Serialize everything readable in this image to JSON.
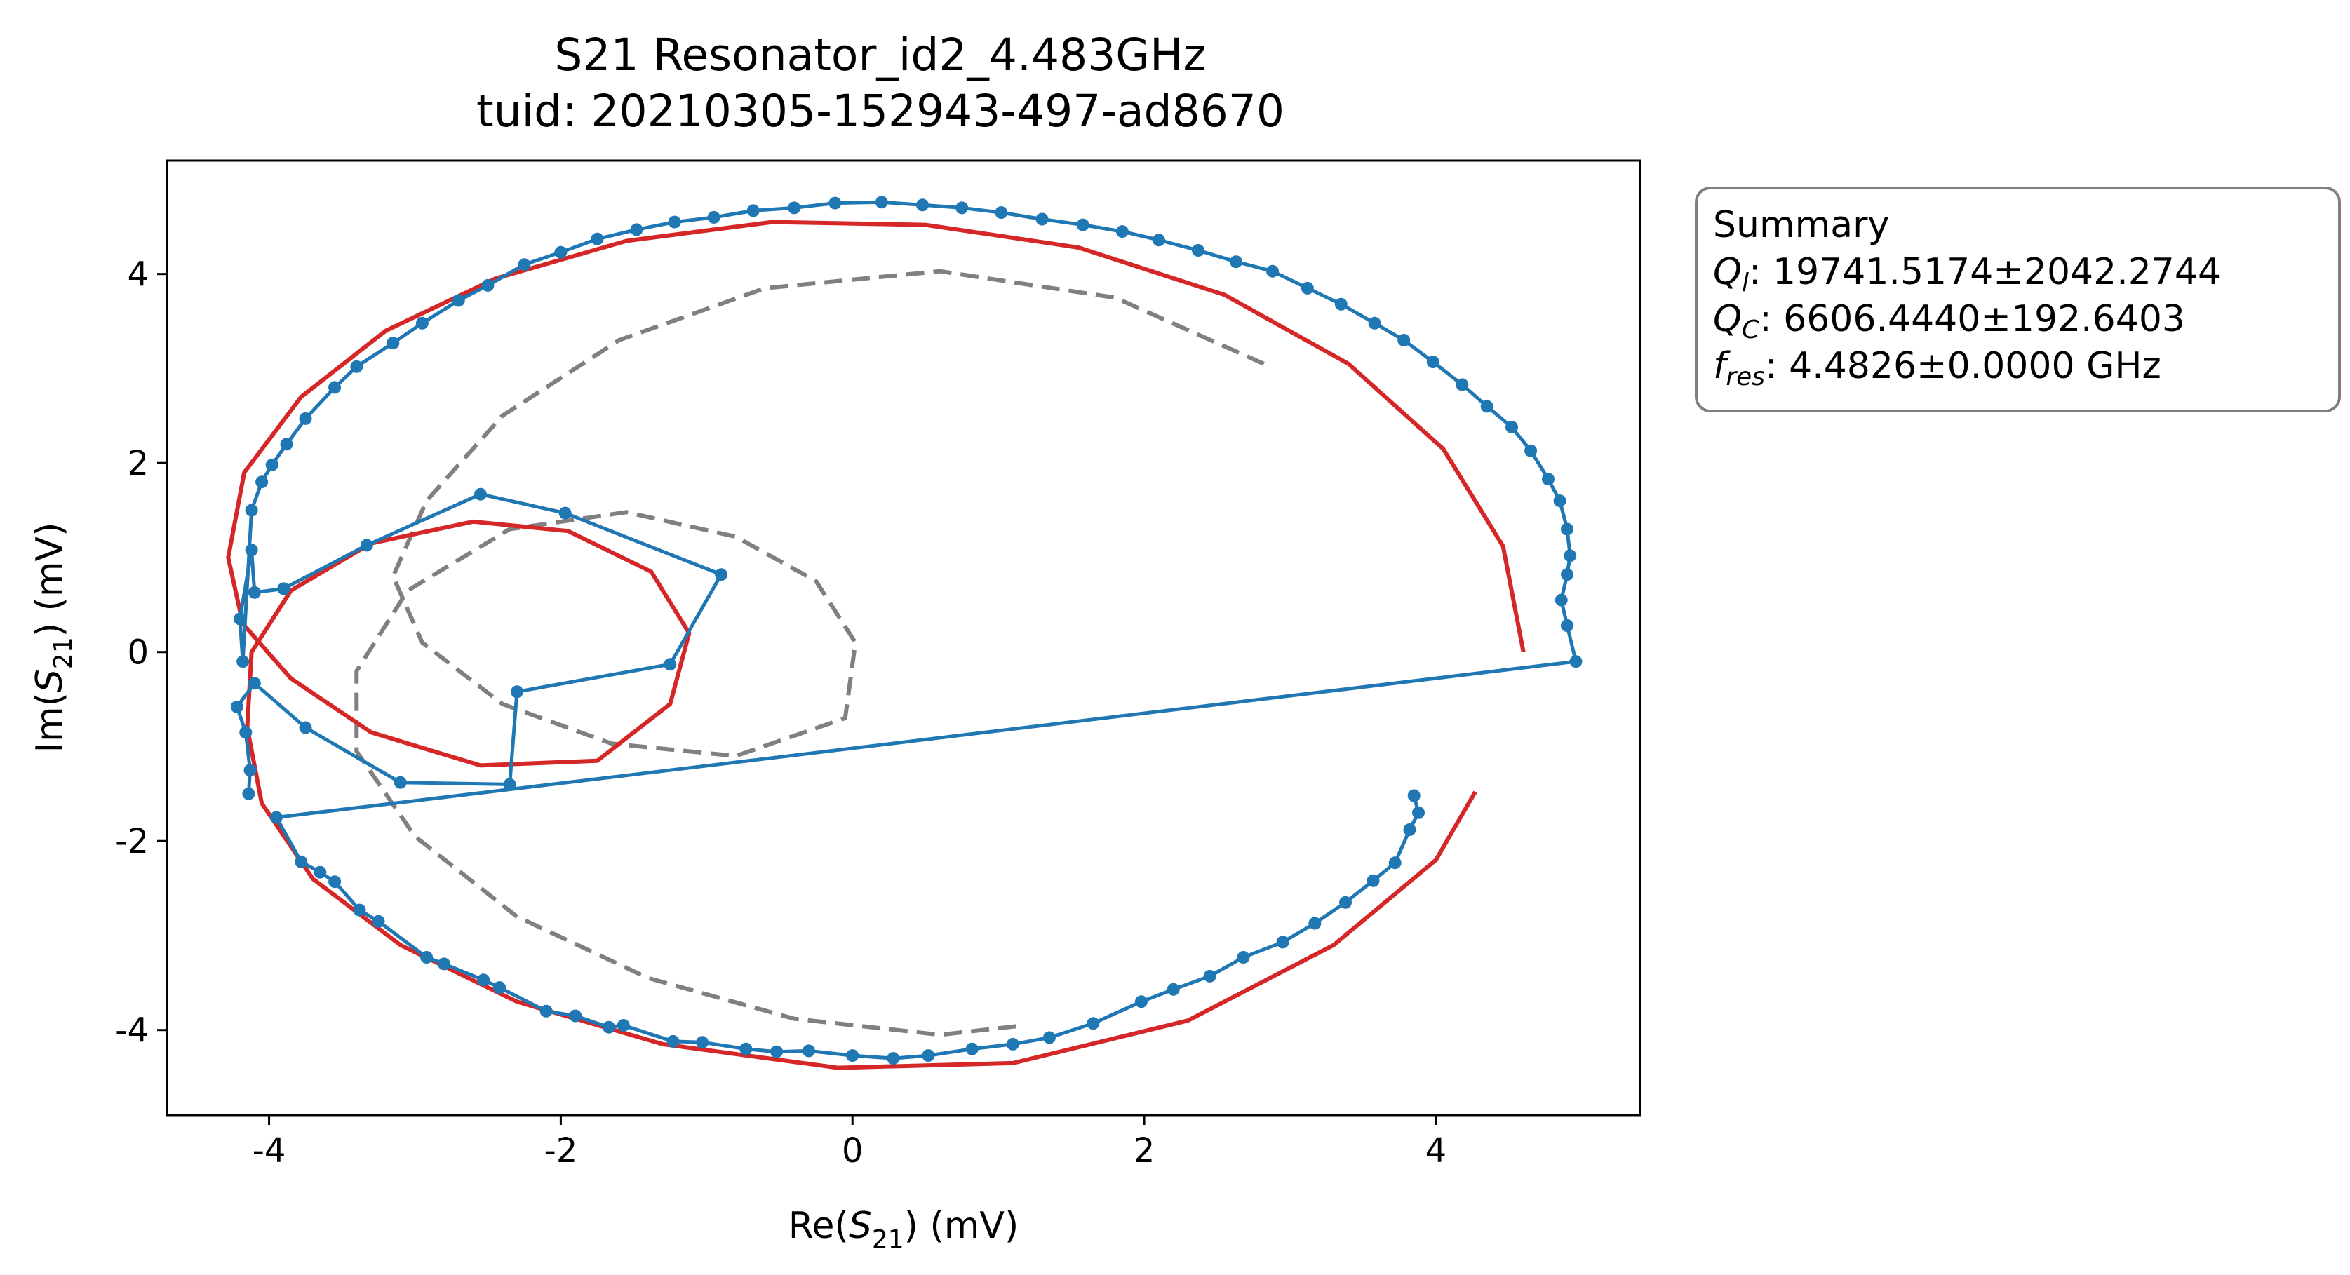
{
  "chart_data": {
    "type": "line",
    "title": "S21 Resonator_id2_4.483GHz",
    "subtitle": "tuid: 20210305-152943-497-ad8670",
    "xlabel": {
      "prefix": "Re(",
      "var": "S",
      "sub": "21",
      "suffix": ") (mV)"
    },
    "ylabel": {
      "prefix": "Im(",
      "var": "S",
      "sub": "21",
      "suffix": ") (mV)"
    },
    "xlim": [
      -4.7,
      5.4
    ],
    "ylim": [
      -4.9,
      5.2
    ],
    "xticks": [
      -4,
      -2,
      0,
      2,
      4
    ],
    "yticks": [
      -4,
      -2,
      0,
      2,
      4
    ],
    "xtick_labels": [
      "-4",
      "-2",
      "0",
      "2",
      "4"
    ],
    "ytick_labels": [
      "-4",
      "-2",
      "0",
      "2",
      "4"
    ],
    "grid": false,
    "colors": {
      "data": "#1f77b4",
      "fit": "#d62728",
      "guess": "#808080"
    },
    "series": [
      {
        "role": "data",
        "style": "line-markers",
        "points": [
          [
            -4.14,
            -1.5
          ],
          [
            -4.13,
            -1.25
          ],
          [
            -4.16,
            -0.85
          ],
          [
            -4.22,
            -0.58
          ],
          [
            -4.1,
            -0.33
          ],
          [
            -3.75,
            -0.8
          ],
          [
            -3.1,
            -1.38
          ],
          [
            -2.35,
            -1.4
          ],
          [
            -2.3,
            -0.42
          ],
          [
            -1.25,
            -0.13
          ],
          [
            -0.9,
            0.82
          ],
          [
            -1.97,
            1.47
          ],
          [
            -2.55,
            1.67
          ],
          [
            -3.33,
            1.13
          ],
          [
            -3.9,
            0.67
          ],
          [
            -4.1,
            0.63
          ],
          [
            -4.12,
            1.08
          ],
          [
            -4.2,
            0.35
          ],
          [
            -4.18,
            -0.1
          ],
          [
            -4.12,
            1.5
          ],
          [
            -4.05,
            1.8
          ],
          [
            -3.98,
            1.98
          ],
          [
            -3.88,
            2.2
          ],
          [
            -3.75,
            2.47
          ],
          [
            -3.55,
            2.8
          ],
          [
            -3.4,
            3.02
          ],
          [
            -3.15,
            3.27
          ],
          [
            -2.95,
            3.48
          ],
          [
            -2.7,
            3.72
          ],
          [
            -2.5,
            3.88
          ],
          [
            -2.25,
            4.1
          ],
          [
            -2.0,
            4.23
          ],
          [
            -1.75,
            4.37
          ],
          [
            -1.48,
            4.47
          ],
          [
            -1.22,
            4.55
          ],
          [
            -0.95,
            4.6
          ],
          [
            -0.68,
            4.67
          ],
          [
            -0.4,
            4.7
          ],
          [
            -0.12,
            4.75
          ],
          [
            0.2,
            4.76
          ],
          [
            0.48,
            4.73
          ],
          [
            0.75,
            4.7
          ],
          [
            1.02,
            4.65
          ],
          [
            1.3,
            4.58
          ],
          [
            1.58,
            4.52
          ],
          [
            1.85,
            4.45
          ],
          [
            2.1,
            4.36
          ],
          [
            2.37,
            4.25
          ],
          [
            2.63,
            4.13
          ],
          [
            2.88,
            4.03
          ],
          [
            3.12,
            3.85
          ],
          [
            3.35,
            3.68
          ],
          [
            3.58,
            3.48
          ],
          [
            3.78,
            3.3
          ],
          [
            3.98,
            3.07
          ],
          [
            4.18,
            2.83
          ],
          [
            4.35,
            2.6
          ],
          [
            4.52,
            2.38
          ],
          [
            4.65,
            2.13
          ],
          [
            4.77,
            1.83
          ],
          [
            4.85,
            1.6
          ],
          [
            4.9,
            1.3
          ],
          [
            4.92,
            1.02
          ],
          [
            4.9,
            0.82
          ],
          [
            4.86,
            0.55
          ],
          [
            4.9,
            0.28
          ],
          [
            4.96,
            -0.1
          ],
          [
            -3.95,
            -1.75
          ],
          [
            -3.78,
            -2.22
          ],
          [
            -3.65,
            -2.33
          ],
          [
            -3.55,
            -2.43
          ],
          [
            -3.38,
            -2.73
          ],
          [
            -3.25,
            -2.85
          ],
          [
            -2.92,
            -3.23
          ],
          [
            -2.8,
            -3.3
          ],
          [
            -2.53,
            -3.47
          ],
          [
            -2.42,
            -3.55
          ],
          [
            -2.1,
            -3.8
          ],
          [
            -1.9,
            -3.85
          ],
          [
            -1.67,
            -3.97
          ],
          [
            -1.57,
            -3.95
          ],
          [
            -1.23,
            -4.12
          ],
          [
            -1.03,
            -4.13
          ],
          [
            -0.73,
            -4.2
          ],
          [
            -0.52,
            -4.23
          ],
          [
            -0.3,
            -4.22
          ],
          [
            0.0,
            -4.27
          ],
          [
            0.28,
            -4.3
          ],
          [
            0.52,
            -4.27
          ],
          [
            0.82,
            -4.2
          ],
          [
            1.1,
            -4.15
          ],
          [
            1.35,
            -4.08
          ],
          [
            1.65,
            -3.93
          ],
          [
            1.98,
            -3.7
          ],
          [
            2.2,
            -3.57
          ],
          [
            2.45,
            -3.43
          ],
          [
            2.68,
            -3.23
          ],
          [
            2.95,
            -3.07
          ],
          [
            3.17,
            -2.87
          ],
          [
            3.38,
            -2.65
          ],
          [
            3.57,
            -2.42
          ],
          [
            3.72,
            -2.23
          ],
          [
            3.82,
            -1.88
          ],
          [
            3.88,
            -1.7
          ],
          [
            3.85,
            -1.52
          ]
        ]
      },
      {
        "role": "fit",
        "style": "solid-curve",
        "points": [
          [
            4.6,
            0.0
          ],
          [
            4.46,
            1.12
          ],
          [
            4.05,
            2.15
          ],
          [
            3.4,
            3.05
          ],
          [
            2.55,
            3.78
          ],
          [
            1.55,
            4.28
          ],
          [
            0.5,
            4.52
          ],
          [
            -0.55,
            4.55
          ],
          [
            -1.55,
            4.35
          ],
          [
            -2.45,
            3.95
          ],
          [
            -3.2,
            3.4
          ],
          [
            -3.78,
            2.7
          ],
          [
            -4.17,
            1.9
          ],
          [
            -4.28,
            1.0
          ],
          [
            -4.18,
            0.3
          ],
          [
            -3.85,
            -0.28
          ],
          [
            -3.3,
            -0.85
          ],
          [
            -2.55,
            -1.2
          ],
          [
            -1.75,
            -1.15
          ],
          [
            -1.25,
            -0.55
          ],
          [
            -1.12,
            0.2
          ],
          [
            -1.38,
            0.85
          ],
          [
            -1.95,
            1.28
          ],
          [
            -2.6,
            1.38
          ],
          [
            -3.3,
            1.15
          ],
          [
            -3.85,
            0.65
          ],
          [
            -4.12,
            0.0
          ],
          [
            -4.15,
            -0.8
          ],
          [
            -4.05,
            -1.6
          ],
          [
            -3.7,
            -2.4
          ],
          [
            -3.1,
            -3.1
          ],
          [
            -2.3,
            -3.7
          ],
          [
            -1.3,
            -4.15
          ],
          [
            -0.1,
            -4.4
          ],
          [
            1.1,
            -4.35
          ],
          [
            2.3,
            -3.9
          ],
          [
            3.3,
            -3.1
          ],
          [
            4.0,
            -2.2
          ],
          [
            4.27,
            -1.48
          ]
        ]
      },
      {
        "role": "guess",
        "style": "dashed-curve",
        "points": [
          [
            2.82,
            3.05
          ],
          [
            1.8,
            3.75
          ],
          [
            0.6,
            4.03
          ],
          [
            -0.6,
            3.85
          ],
          [
            -1.6,
            3.3
          ],
          [
            -2.4,
            2.5
          ],
          [
            -2.92,
            1.6
          ],
          [
            -3.15,
            0.8
          ],
          [
            -2.95,
            0.1
          ],
          [
            -2.4,
            -0.55
          ],
          [
            -1.65,
            -0.97
          ],
          [
            -0.8,
            -1.1
          ],
          [
            -0.05,
            -0.7
          ],
          [
            0.02,
            0.1
          ],
          [
            -0.25,
            0.75
          ],
          [
            -0.8,
            1.22
          ],
          [
            -1.55,
            1.48
          ],
          [
            -2.35,
            1.3
          ],
          [
            -3.05,
            0.65
          ],
          [
            -3.4,
            -0.2
          ],
          [
            -3.4,
            -1.05
          ],
          [
            -3.0,
            -1.95
          ],
          [
            -2.3,
            -2.8
          ],
          [
            -1.4,
            -3.45
          ],
          [
            -0.4,
            -3.88
          ],
          [
            0.6,
            -4.05
          ],
          [
            1.18,
            -3.95
          ]
        ]
      }
    ],
    "summary": {
      "title": "Summary",
      "lines": [
        {
          "var": "Q",
          "sub": "l",
          "text": ": 19741.5174±2042.2744"
        },
        {
          "var": "Q",
          "sub": "C",
          "text": ": 6606.4440±192.6403"
        },
        {
          "var": "f",
          "sub": "res",
          "text": ": 4.4826±0.0000 GHz"
        }
      ]
    }
  }
}
